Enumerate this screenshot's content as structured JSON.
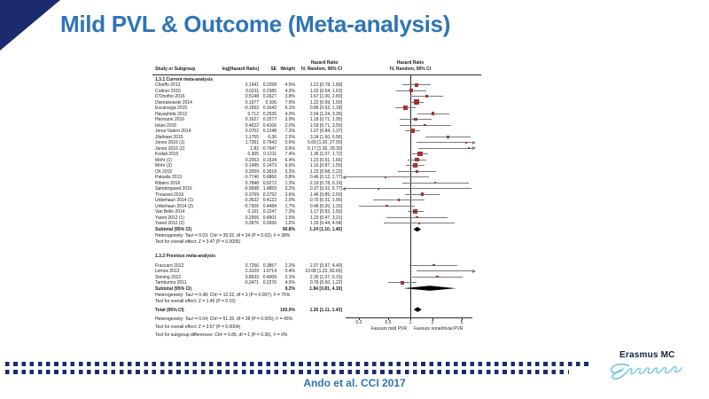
{
  "slide": {
    "title": "Mild PVL & Outcome (Meta-analysis)",
    "citation": "Ando et al. CCI 2017",
    "logo_text": "Erasmus MC"
  },
  "colors": {
    "title_blue": "#2e75b6",
    "navy": "#1c2b6d",
    "logo_navy": "#0c2340",
    "logo_script_blue": "#6cc4e9",
    "marker_red": "#a5342c",
    "ci_line_gray": "#787878",
    "axis_black": "#2b2b2b",
    "diamond_black": "#000000"
  },
  "chart_data": {
    "type": "scatter",
    "variant": "forest-plot-meta-analysis",
    "title": "Mild PVL & Outcome (Meta-analysis)",
    "effect_measure": "Hazard Ratio",
    "model": "IV, Random, 95% CI",
    "headers": {
      "study": "Study or Subgroup",
      "log_hr": "log[Hazard Ratio]",
      "se": "SE",
      "weight": "Weight",
      "hr_top": "Hazard Ratio",
      "ci_sub": "IV, Random, 95% CI",
      "plot_top": "Hazard Ratio",
      "plot_sub": "IV, Random, 95% CI"
    },
    "x_axis": {
      "scale": "log",
      "ticks": [
        0.2,
        0.5,
        1,
        2,
        5
      ],
      "range": [
        0.13,
        7.0
      ],
      "label_left": "Favours mild PVR",
      "label_right": "Favours none/trivial PVR"
    },
    "groups": [
      {
        "label": "1.3.1 Current meta-analysis",
        "studies": [
          {
            "name": "Chieffo 2013",
            "log": "0.1941",
            "se": "0.2258",
            "wt": "4.5%",
            "ci": "1.21 [0.78, 1.89]",
            "hr": 1.21,
            "lo": 0.78,
            "hi": 1.89,
            "w": 4.5
          },
          {
            "name": "Codner 2015",
            "log": "0.0211",
            "se": "0.2385",
            "wt": "4.3%",
            "ci": "1.02 [0.64, 1.63]",
            "hr": 1.02,
            "lo": 0.64,
            "hi": 1.63,
            "w": 4.3
          },
          {
            "name": "D'Onofrio 2016",
            "log": "0.5148",
            "se": "0.2627",
            "wt": "3.8%",
            "ci": "1.67 [1.00, 2.80]",
            "hr": 1.67,
            "lo": 1.0,
            "hi": 2.8,
            "w": 3.8
          },
          {
            "name": "Dworakowski 2014",
            "log": "0.1977",
            "se": "0.106",
            "wt": "7.9%",
            "ci": "1.22 [0.99, 1.50]",
            "hr": 1.22,
            "lo": 0.99,
            "hi": 1.5,
            "w": 7.9
          },
          {
            "name": "Escarcega 2015",
            "log": "-0.1563",
            "se": "0.1642",
            "wt": "6.1%",
            "ci": "0.86 [0.62, 1.18]",
            "hr": 0.86,
            "lo": 0.62,
            "hi": 1.18,
            "w": 6.1
          },
          {
            "name": "Hayashida 2012",
            "log": "0.712",
            "se": "0.2535",
            "wt": "4.0%",
            "ci": "2.04 [1.24, 3.35]",
            "hr": 2.04,
            "lo": 1.24,
            "hi": 3.35,
            "w": 4.0
          },
          {
            "name": "Hermann 2016",
            "log": "0.1627",
            "se": "0.2577",
            "wt": "3.9%",
            "ci": "1.18 [0.71, 1.95]",
            "hr": 1.18,
            "lo": 0.71,
            "hi": 1.95,
            "w": 3.9
          },
          {
            "name": "Ielasi 2015",
            "log": "0.4622",
            "se": "0.4106",
            "wt": "2.0%",
            "ci": "1.59 [0.71, 3.55]",
            "hr": 1.59,
            "lo": 0.71,
            "hi": 3.55,
            "w": 2.0
          },
          {
            "name": "Jerez-Valero 2014",
            "log": "0.0702",
            "se": "0.1248",
            "wt": "7.3%",
            "ci": "1.07 [0.84, 1.37]",
            "hr": 1.07,
            "lo": 0.84,
            "hi": 1.37,
            "w": 7.3
          },
          {
            "name": "Jilaihawi 2015",
            "log": "1.1755",
            "se": "0.36",
            "wt": "2.5%",
            "ci": "3.24 [1.60, 6.56]",
            "hr": 3.24,
            "lo": 1.6,
            "hi": 6.56,
            "w": 2.5
          },
          {
            "name": "Jones 2016 (1)",
            "log": "1.7391",
            "se": "0.7943",
            "wt": "0.6%",
            "ci": "5.69 [1.20, 27.00]",
            "hr": 5.69,
            "lo": 1.2,
            "hi": 27.0,
            "w": 0.6
          },
          {
            "name": "Jones 2016 (2)",
            "log": "1.82",
            "se": "0.7947",
            "wt": "0.6%",
            "ci": "6.17 [1.30, 29.30]",
            "hr": 6.17,
            "lo": 1.3,
            "hi": 29.3,
            "w": 0.6
          },
          {
            "name": "Kodali 2015",
            "log": "0.305",
            "se": "0.1211",
            "wt": "7.4%",
            "ci": "1.36 [1.07, 1.72]",
            "hr": 1.36,
            "lo": 1.07,
            "hi": 1.72,
            "w": 7.4
          },
          {
            "name": "Mohr (1)",
            "log": "0.2063",
            "se": "0.1534",
            "wt": "6.4%",
            "ci": "1.23 [0.91, 1.66]",
            "hr": 1.23,
            "lo": 0.91,
            "hi": 1.66,
            "w": 6.4
          },
          {
            "name": "Mohr (2)",
            "log": "0.1495",
            "se": "0.1473",
            "wt": "6.6%",
            "ci": "1.16 [0.87, 1.55]",
            "hr": 1.16,
            "lo": 0.87,
            "hi": 1.55,
            "w": 6.6
          },
          {
            "name": "Oh 2015",
            "log": "0.2059",
            "se": "0.3018",
            "wt": "3.2%",
            "ci": "1.23 [0.68, 2.22]",
            "hr": 1.23,
            "lo": 0.68,
            "hi": 2.22,
            "w": 3.2
          },
          {
            "name": "Patsalis 2013",
            "log": "-0.7746",
            "se": "0.6866",
            "wt": "0.8%",
            "ci": "0.46 [0.12, 1.77]",
            "hr": 0.46,
            "lo": 0.12,
            "hi": 1.77,
            "w": 0.8
          },
          {
            "name": "Ribeiro 2016",
            "log": "0.7848",
            "se": "0.5272",
            "wt": "1.3%",
            "ci": "2.19 [0.78, 6.16]",
            "hr": 2.19,
            "lo": 0.78,
            "hi": 6.16,
            "w": 1.3
          },
          {
            "name": "Søndergaard 2016",
            "log": "-0.9998",
            "se": "1.4859",
            "wt": "0.2%",
            "ci": "0.37 [0.02, 6.77]",
            "hr": 0.37,
            "lo": 0.02,
            "hi": 6.77,
            "w": 0.2
          },
          {
            "name": "Thourani 2016",
            "log": "0.3769",
            "se": "0.2752",
            "wt": "3.6%",
            "ci": "1.46 [0.85, 2.50]",
            "hr": 1.46,
            "lo": 0.85,
            "hi": 2.5,
            "w": 3.6
          },
          {
            "name": "Unbehaun 2014 (1)",
            "log": "-0.3632",
            "se": "0.4122",
            "wt": "2.0%",
            "ci": "0.70 [0.31, 1.56]",
            "hr": 0.7,
            "lo": 0.31,
            "hi": 1.56,
            "w": 2.0
          },
          {
            "name": "Unbehaun 2014 (2)",
            "log": "-0.7306",
            "se": "0.4484",
            "wt": "1.7%",
            "ci": "0.48 [0.20, 1.16]",
            "hr": 0.48,
            "lo": 0.2,
            "hi": 1.16,
            "w": 1.7
          },
          {
            "name": "Van Belle 2014",
            "log": "0.161",
            "se": "0.1247",
            "wt": "7.3%",
            "ci": "1.17 [0.92, 1.50]",
            "hr": 1.17,
            "lo": 0.92,
            "hi": 1.5,
            "w": 7.3
          },
          {
            "name": "Yared 2012 (1)",
            "log": "0.2056",
            "se": "0.4901",
            "wt": "1.5%",
            "ci": "1.23 [0.47, 3.21]",
            "hr": 1.23,
            "lo": 0.47,
            "hi": 3.21,
            "w": 1.5
          },
          {
            "name": "Yared 2012 (2)",
            "log": "0.2876",
            "se": "0.5656",
            "wt": "1.2%",
            "ci": "1.33 [0.44, 4.04]",
            "hr": 1.33,
            "lo": 0.44,
            "hi": 4.04,
            "w": 1.2
          }
        ],
        "subtotal": {
          "name": "Subtotal (95% CI)",
          "wt": "90.8%",
          "ci": "1.24 [1.10, 1.40]",
          "hr": 1.24,
          "lo": 1.1,
          "hi": 1.4
        },
        "footnotes": [
          "Heterogeneity: Tau² = 0.03; Chi² = 39.02, df = 24 (P = 0.03); I² = 38%",
          "Test for overall effect: Z = 3.47 (P = 0.0005)"
        ]
      },
      {
        "label": "1.3.2 Previous meta-analysis",
        "studies": [
          {
            "name": "Fraccaro 2012",
            "log": "0.7256",
            "se": "0.3857",
            "wt": "2.2%",
            "ci": "2.07 [0.97, 4.40]",
            "hr": 2.07,
            "lo": 0.97,
            "hi": 4.4,
            "w": 2.2
          },
          {
            "name": "Lemos 2012",
            "log": "2.3109",
            "se": "1.0714",
            "wt": "0.4%",
            "ci": "10.08 [1.23, 82.66]",
            "hr": 10.08,
            "lo": 1.23,
            "hi": 82.66,
            "w": 0.4
          },
          {
            "name": "Sinning 2012",
            "log": "0.8533",
            "se": "0.4009",
            "wt": "2.1%",
            "ci": "2.35 [1.07, 5.15]",
            "hr": 2.35,
            "lo": 1.07,
            "hi": 5.15,
            "w": 2.1
          },
          {
            "name": "Tamburino 2011",
            "log": "-0.2471",
            "se": "0.2276",
            "wt": "4.5%",
            "ci": "0.78 [0.50, 1.22]",
            "hr": 0.78,
            "lo": 0.5,
            "hi": 1.22,
            "w": 4.5
          }
        ],
        "subtotal": {
          "name": "Subtotal (95% CI)",
          "wt": "9.2%",
          "ci": "1.84 [0.81, 4.19]",
          "hr": 1.84,
          "lo": 0.81,
          "hi": 4.19
        },
        "footnotes": [
          "Heterogeneity: Tau² = 0.48; Chi² = 12.22, df = 3 (P = 0.007); I² = 75%",
          "Test for overall effect: Z = 1.45 (P = 0.15)"
        ]
      }
    ],
    "total": {
      "name": "Total (95% CI)",
      "wt": "100.0%",
      "ci": "1.26 [1.11, 1.43]",
      "hr": 1.26,
      "lo": 1.11,
      "hi": 1.43
    },
    "total_footnotes": [
      "Heterogeneity: Tau² = 0.04; Chi² = 51.26, df = 28 (P = 0.005); I² = 45%",
      "Test for overall effect: Z = 3.57 (P = 0.0004)",
      "Test for subgroup differences: Chi² = 0.85, df = 1 (P = 0.36), I² = 0%"
    ]
  }
}
